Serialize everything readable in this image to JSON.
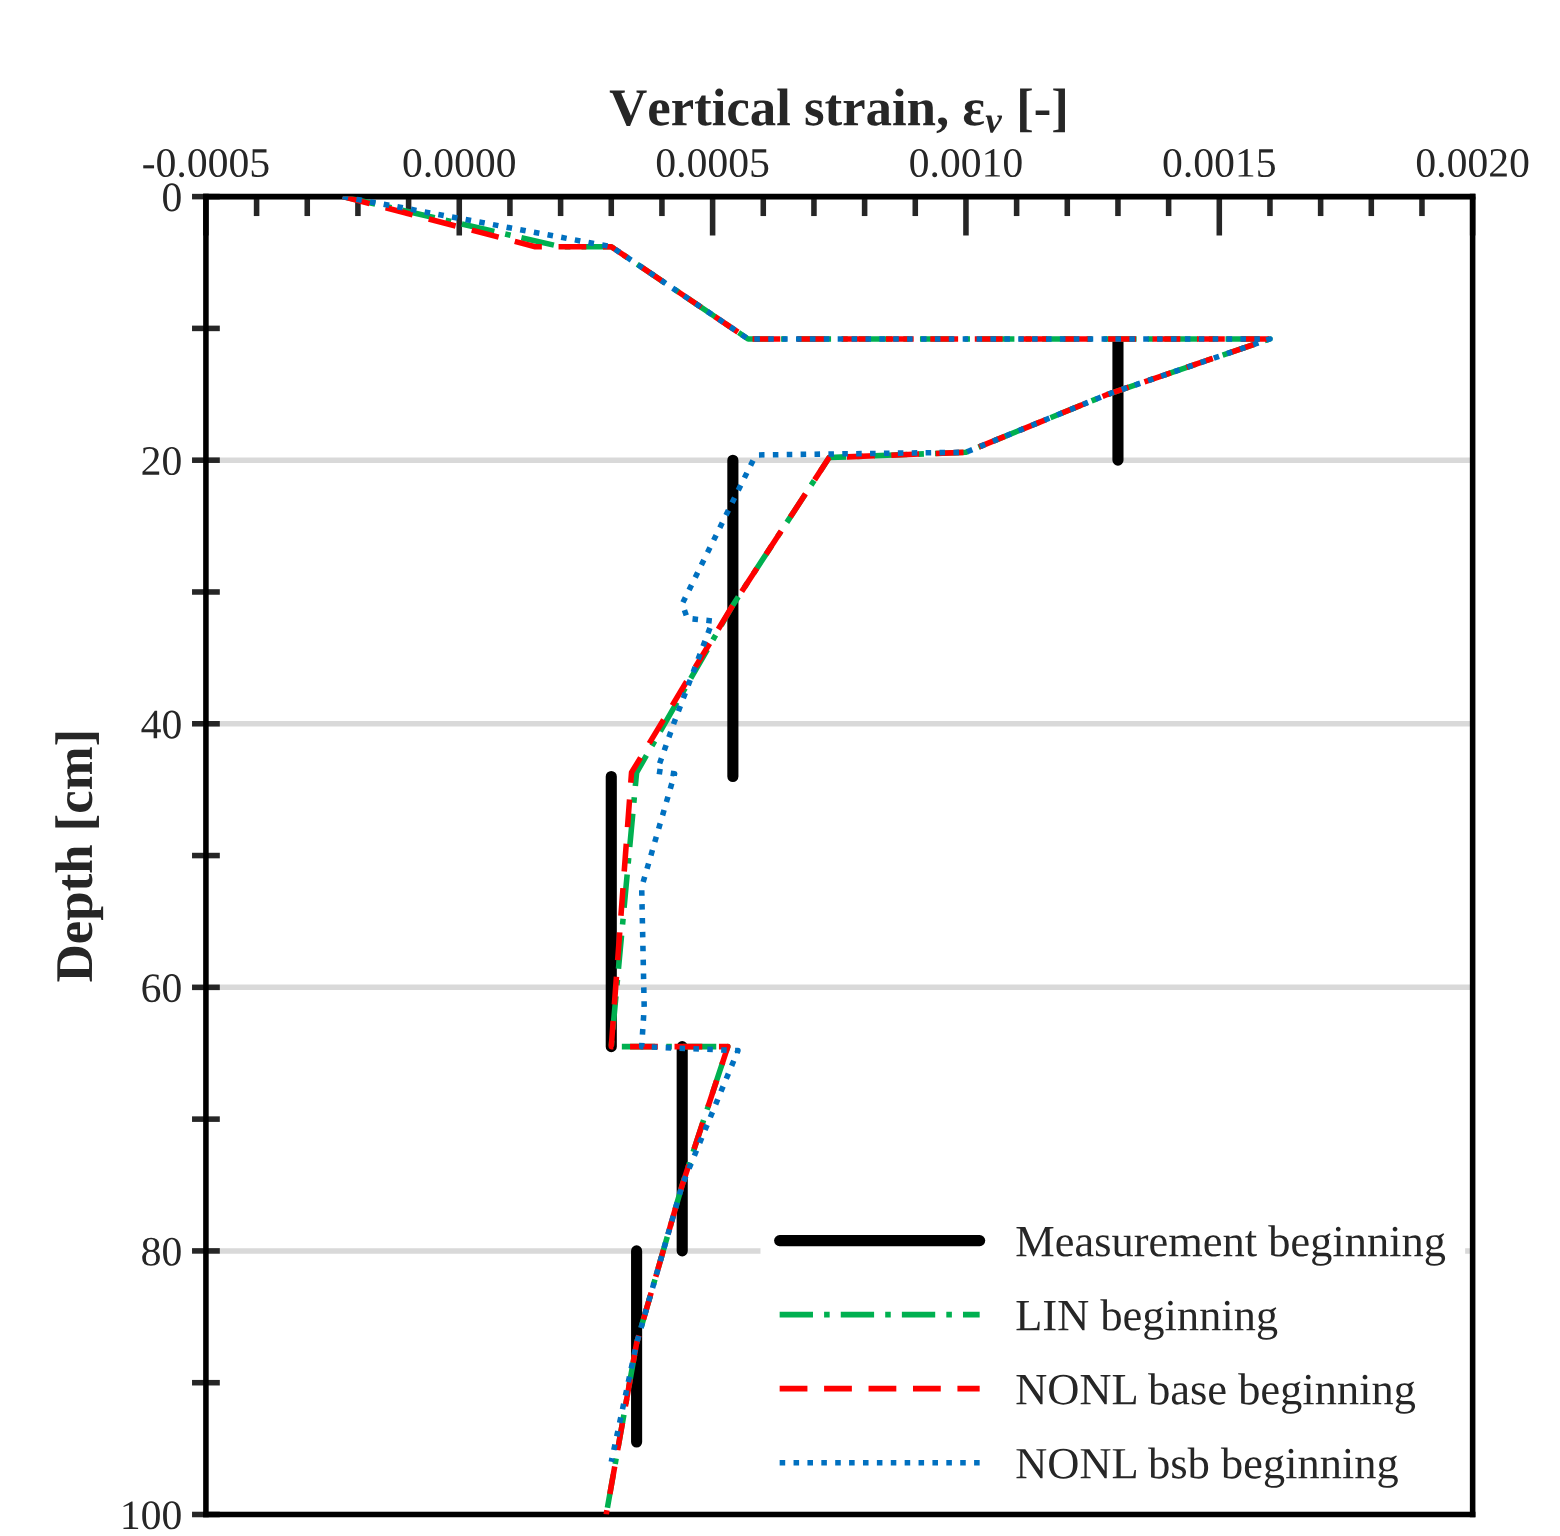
{
  "chart_data": {
    "type": "line",
    "xlabel": "Vertical strain, ε$_{v}$ [-]",
    "ylabel": "Depth [cm]",
    "xlim": [
      -0.0005,
      0.002
    ],
    "ylim": [
      100,
      0
    ],
    "xticks": [
      {
        "value": -0.0005,
        "label": "-0.0005"
      },
      {
        "value": -0.0004,
        "label": null
      },
      {
        "value": -0.0003,
        "label": null
      },
      {
        "value": -0.0002,
        "label": null
      },
      {
        "value": -0.0001,
        "label": null
      },
      {
        "value": 0.0,
        "label": "0.0000"
      },
      {
        "value": 0.0001,
        "label": null
      },
      {
        "value": 0.0002,
        "label": null
      },
      {
        "value": 0.0003,
        "label": null
      },
      {
        "value": 0.0004,
        "label": null
      },
      {
        "value": 0.0005,
        "label": "0.0005"
      },
      {
        "value": 0.0006,
        "label": null
      },
      {
        "value": 0.0007,
        "label": null
      },
      {
        "value": 0.0008,
        "label": null
      },
      {
        "value": 0.0009,
        "label": null
      },
      {
        "value": 0.001,
        "label": "0.0010"
      },
      {
        "value": 0.0011,
        "label": null
      },
      {
        "value": 0.0012,
        "label": null
      },
      {
        "value": 0.0013,
        "label": null
      },
      {
        "value": 0.0014,
        "label": null
      },
      {
        "value": 0.0015,
        "label": "0.0015"
      },
      {
        "value": 0.0016,
        "label": null
      },
      {
        "value": 0.0017,
        "label": null
      },
      {
        "value": 0.0018,
        "label": null
      },
      {
        "value": 0.0019,
        "label": null
      },
      {
        "value": 0.002,
        "label": "0.0020"
      }
    ],
    "yticks": [
      0,
      {
        "value": 10,
        "label": null
      },
      20,
      {
        "value": 30,
        "label": null
      },
      40,
      {
        "value": 50,
        "label": null
      },
      60,
      {
        "value": 70,
        "label": null
      },
      80,
      {
        "value": 90,
        "label": null
      },
      100
    ],
    "grid": "y",
    "legend": "bottom right",
    "marker": "none",
    "series": [
      {
        "name": "Measurement beginning",
        "color": "#000000",
        "line_style": "solid",
        "x": [
          0.0013,
          0.0013,
          null,
          0.00054,
          0.00054,
          null,
          0.0003,
          0.0003,
          null,
          0.00044,
          0.00044,
          null,
          0.00035,
          0.00035
        ],
        "values": [
          11,
          20,
          null,
          20,
          44,
          null,
          44,
          64.5,
          null,
          64.5,
          80,
          null,
          80,
          94.5
        ]
      },
      {
        "name": "LIN beginning",
        "color": "#00b050",
        "line_style": "dashdot",
        "x": [
          -0.00023,
          0.0002,
          0.0003,
          0.00057,
          0.0016,
          0.00128,
          0.001,
          0.00073,
          0.00054,
          0.00035,
          0.0003,
          0.00053,
          0.00044,
          0.00035,
          0.00029
        ],
        "values": [
          0,
          3.8,
          3.8,
          10.8,
          10.8,
          15,
          19.4,
          19.8,
          31,
          43.7,
          64.5,
          64.5,
          75,
          87,
          100
        ]
      },
      {
        "name": "NONL base beginning",
        "color": "#ff0000",
        "line_style": "dashed",
        "x": [
          -0.00023,
          0.00015,
          0.0003,
          0.00057,
          0.0016,
          0.00128,
          0.001,
          0.00073,
          0.00054,
          0.00034,
          0.0003,
          0.00053,
          0.00044,
          0.00035,
          0.00029
        ],
        "values": [
          0,
          3.8,
          3.8,
          10.8,
          10.8,
          15,
          19.4,
          19.8,
          31,
          43.7,
          64.5,
          64.5,
          75,
          87,
          100
        ]
      },
      {
        "name": "NONL bsb beginning",
        "color": "#0070c0",
        "line_style": "dotted",
        "x": [
          -0.00023,
          0.0003,
          0.00057,
          0.0016,
          0.00128,
          0.001,
          0.00059,
          0.00058,
          0.00044,
          0.00045,
          0.0005,
          0.000425,
          0.00039,
          0.000425,
          0.00036,
          0.000365,
          0.00036,
          0.00055,
          0.00044,
          0.00035,
          0.0003
        ],
        "values": [
          0,
          3.8,
          10.8,
          10.8,
          15,
          19.4,
          19.6,
          20,
          30.9,
          32,
          32.2,
          39.8,
          43.6,
          43.8,
          52.4,
          61.5,
          64.5,
          64.8,
          75,
          87,
          96
        ]
      }
    ]
  }
}
